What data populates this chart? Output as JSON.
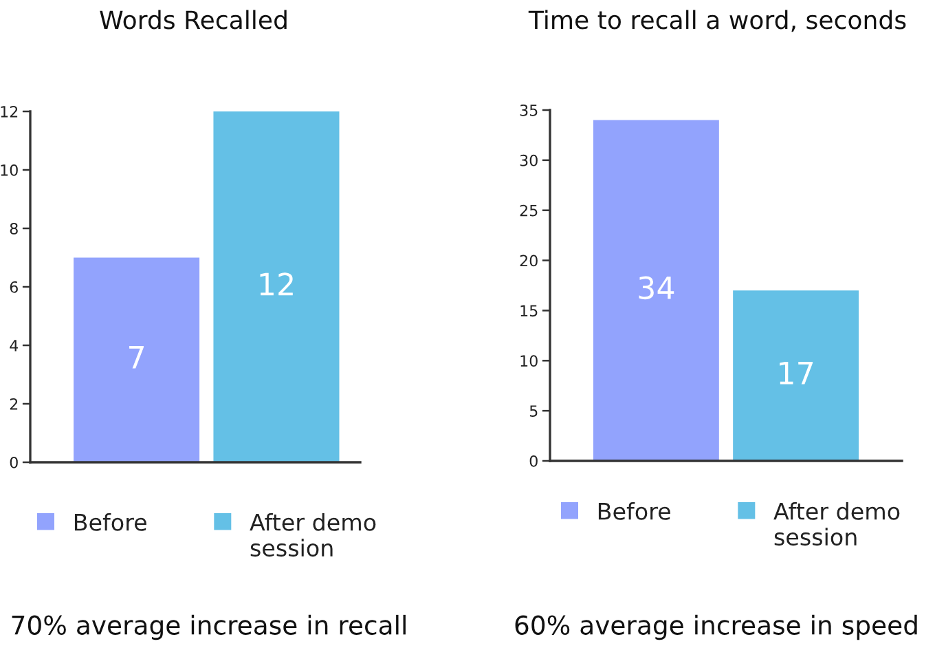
{
  "chart_data": [
    {
      "type": "bar",
      "title": "Words Recalled",
      "categories": [
        null
      ],
      "series": [
        {
          "name": "Before",
          "color": "#92a3fd",
          "values": [
            7
          ]
        },
        {
          "name": "After demo session",
          "color": "#64c0e6",
          "values": [
            12
          ]
        }
      ],
      "ylim": [
        0,
        12
      ],
      "yticks": [
        0,
        2,
        4,
        6,
        8,
        10,
        12
      ],
      "data_labels": true,
      "legend": "bottom",
      "tick_labels": "y",
      "annotations": [
        "70% average increase in recall"
      ]
    },
    {
      "type": "bar",
      "title": "Time to recall a word, seconds",
      "categories": [
        null
      ],
      "series": [
        {
          "name": "Before",
          "color": "#92a3fd",
          "values": [
            34
          ]
        },
        {
          "name": "After demo session",
          "color": "#64c0e6",
          "values": [
            17
          ]
        }
      ],
      "ylim": [
        0,
        35
      ],
      "yticks": [
        0,
        5,
        10,
        15,
        20,
        25,
        30,
        35
      ],
      "data_labels": true,
      "legend": "bottom",
      "tick_labels": "y",
      "annotations": [
        "60% average increase in speed"
      ]
    }
  ]
}
